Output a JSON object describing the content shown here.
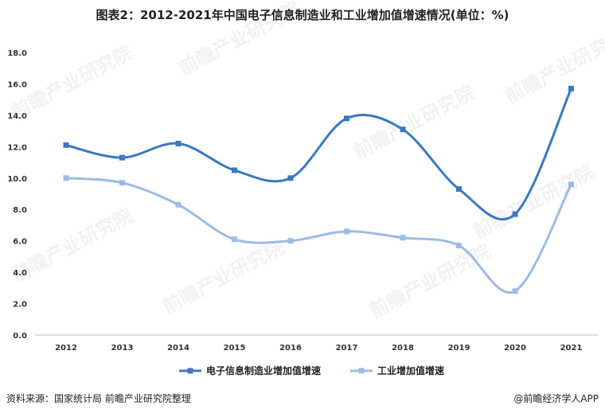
{
  "chart_data": {
    "type": "line",
    "title": "图表2：2012-2021年中国电子信息制造业和工业增加值增速情况(单位：%)",
    "categories": [
      "2012",
      "2013",
      "2014",
      "2015",
      "2016",
      "2017",
      "2018",
      "2019",
      "2020",
      "2021"
    ],
    "series": [
      {
        "name": "电子信息制造业增加值增速",
        "color": "#3b78c2",
        "values": [
          12.1,
          11.3,
          12.2,
          10.5,
          10.0,
          13.8,
          13.1,
          9.3,
          7.7,
          15.7
        ]
      },
      {
        "name": "工业增加值增速",
        "color": "#9dbbe3",
        "values": [
          10.0,
          9.7,
          8.3,
          6.1,
          6.0,
          6.6,
          6.2,
          5.7,
          2.8,
          9.6
        ]
      }
    ],
    "ylim": [
      0,
      18
    ],
    "yticks": [
      "0.0",
      "2.0",
      "4.0",
      "6.0",
      "8.0",
      "10.0",
      "12.0",
      "14.0",
      "16.0",
      "18.0"
    ],
    "grid": false,
    "legend": "bottom-center"
  },
  "footer": {
    "source": "资料来源：国家统计局 前瞻产业研究院整理",
    "credit": "@前瞻经济学人APP"
  },
  "watermark": "前瞻产业研究院"
}
